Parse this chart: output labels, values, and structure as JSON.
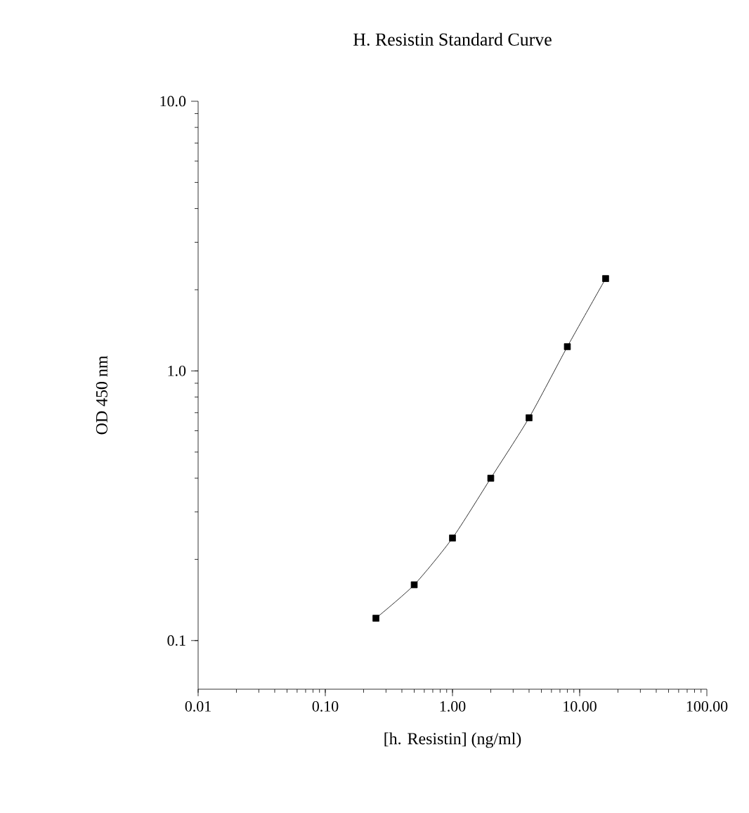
{
  "chart_data": {
    "type": "line",
    "title": "H. Resistin Standard Curve",
    "xlabel": "[h. Resistin] (ng/ml)",
    "ylabel": "OD 450 nm",
    "x": [
      0.25,
      0.5,
      1,
      2,
      4,
      8,
      16
    ],
    "series": [
      {
        "color": "#000000",
        "values": [
          0.121,
          0.161,
          0.24,
          0.4,
          0.67,
          1.23,
          2.2
        ]
      }
    ],
    "log": "xy",
    "marker": "square",
    "line_style": "solid",
    "xlim": [
      0.01,
      100
    ],
    "ylim": [
      0.066,
      10
    ],
    "xticks": [
      {
        "value": 0.01,
        "label": "0.01"
      },
      {
        "value": 0.1,
        "label": "0.10"
      },
      {
        "value": 1,
        "label": "1.00"
      },
      {
        "value": 10,
        "label": "10.00"
      },
      {
        "value": 100,
        "label": "100.00"
      }
    ],
    "yticks": [
      {
        "value": 0.1,
        "label": "0.1"
      },
      {
        "value": 1,
        "label": "1.0"
      },
      {
        "value": 10,
        "label": "10.0"
      }
    ]
  }
}
